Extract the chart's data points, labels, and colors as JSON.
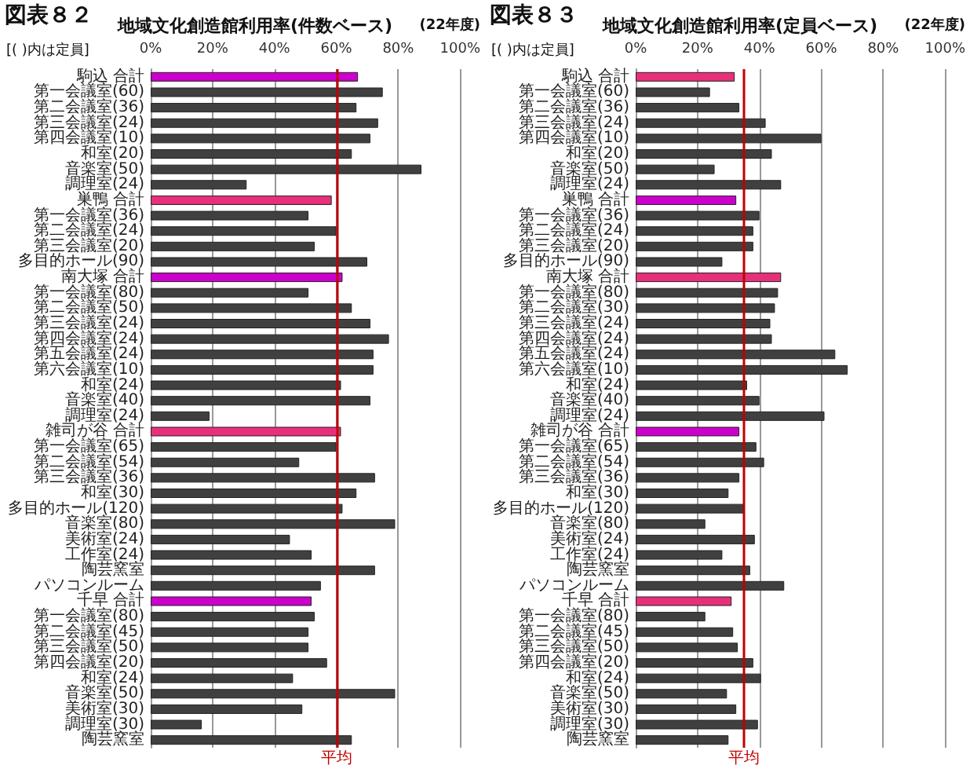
{
  "chart_data": [
    {
      "type": "bar",
      "orientation": "horizontal",
      "title": "地域文化創造館利用率(件数ベース)",
      "annotations": [
        "図表８２",
        "(22年度)",
        "[( )内は定員]"
      ],
      "categories": [
        "駒込 合計",
        "第一会議室(60)",
        "第二会議室(36)",
        "第三会議室(24)",
        "第四会議室(10)",
        "和室(20)",
        "音楽室(50)",
        "調理室(24)",
        "巣鴨 合計",
        "第一会議室(36)",
        "第二会議室(24)",
        "第三会議室(20)",
        "多目的ホール(90)",
        "南大塚 合計",
        "第一会議室(80)",
        "第二会議室(50)",
        "第三会議室(24)",
        "第四会議室(24)",
        "第五会議室(24)",
        "第六会議室(10)",
        "和室(24)",
        "音楽室(40)",
        "調理室(24)",
        "雑司が谷 合計",
        "第一会議室(65)",
        "第二会議室(54)",
        "第三会議室(36)",
        "和室(30)",
        "多目的ホール(120)",
        "音楽室(80)",
        "美術室(24)",
        "工作室(24)",
        "陶芸窯室",
        "パソコンルーム",
        "千早 合計",
        "第一会議室(80)",
        "第二会議室(45)",
        "第三会議室(50)",
        "第四会議室(20)",
        "和室(24)",
        "音楽室(50)",
        "美術室(30)",
        "調理室(30)",
        "陶芸窯室"
      ],
      "values": [
        67,
        75,
        66.5,
        73.5,
        71,
        65,
        87.5,
        31,
        58.5,
        51,
        60,
        53,
        70,
        62,
        51,
        65,
        71,
        77,
        72,
        72,
        61.5,
        71,
        19,
        61.5,
        60,
        48,
        72.5,
        66.5,
        62,
        79,
        45,
        52,
        72.5,
        55,
        52,
        53,
        51,
        51,
        57,
        46,
        79,
        49,
        16.5,
        65
      ],
      "colors": [
        "#cc00cc",
        "#404040",
        "#404040",
        "#404040",
        "#404040",
        "#404040",
        "#404040",
        "#404040",
        "#e8307a",
        "#404040",
        "#404040",
        "#404040",
        "#404040",
        "#cc00cc",
        "#404040",
        "#404040",
        "#404040",
        "#404040",
        "#404040",
        "#404040",
        "#404040",
        "#404040",
        "#404040",
        "#e8307a",
        "#404040",
        "#404040",
        "#404040",
        "#404040",
        "#404040",
        "#404040",
        "#404040",
        "#404040",
        "#404040",
        "#404040",
        "#cc00cc",
        "#404040",
        "#404040",
        "#404040",
        "#404040",
        "#404040",
        "#404040",
        "#404040",
        "#404040",
        "#404040"
      ],
      "xlim": [
        0,
        100
      ],
      "xticks": [
        {
          "value": 0,
          "label": "0%"
        },
        {
          "value": 20,
          "label": "20%"
        },
        {
          "value": 40,
          "label": "40%"
        },
        {
          "value": 60,
          "label": "60%"
        },
        {
          "value": 80,
          "label": "80%"
        },
        {
          "value": 100,
          "label": "100%"
        }
      ],
      "grid": "x",
      "ref_lines": [
        {
          "axis": "x",
          "value": 60,
          "label": "平均",
          "color": "#c00000"
        }
      ]
    },
    {
      "type": "bar",
      "orientation": "horizontal",
      "title": "地域文化創造館利用率(定員ベース)",
      "annotations": [
        "図表８３",
        "(22年度)",
        "[( )内は定員]"
      ],
      "categories": [
        "駒込 合計",
        "第一会議室(60)",
        "第二会議室(36)",
        "第三会議室(24)",
        "第四会議室(10)",
        "和室(20)",
        "音楽室(50)",
        "調理室(24)",
        "巣鴨 合計",
        "第一会議室(36)",
        "第二会議室(24)",
        "第三会議室(20)",
        "多目的ホール(90)",
        "南大塚 合計",
        "第一会議室(80)",
        "第二会議室(30)",
        "第三会議室(24)",
        "第四会議室(24)",
        "第五会議室(24)",
        "第六会議室(10)",
        "和室(24)",
        "音楽室(40)",
        "調理室(24)",
        "雑司が谷 合計",
        "第一会議室(65)",
        "第二会議室(54)",
        "第三会議室(36)",
        "和室(30)",
        "多目的ホール(120)",
        "音楽室(80)",
        "美術室(24)",
        "工作室(24)",
        "陶芸窯室",
        "パソコンルーム",
        "千早 合計",
        "第一会議室(80)",
        "第二会議室(45)",
        "第三会議室(50)",
        "第四会議室(20)",
        "和室(24)",
        "音楽室(50)",
        "美術室(30)",
        "調理室(30)",
        "陶芸窯室"
      ],
      "values": [
        32,
        24,
        33.5,
        42,
        60,
        44,
        25.5,
        47,
        32.5,
        40,
        38,
        38,
        28,
        47,
        46,
        45,
        43.5,
        44,
        64.5,
        68.5,
        36,
        40,
        61,
        33.5,
        39,
        41.5,
        33.5,
        30,
        35,
        22.5,
        38.5,
        28,
        37,
        48,
        31,
        22.5,
        31.5,
        33,
        38,
        40.5,
        29.5,
        32.5,
        39.5,
        30
      ],
      "colors": [
        "#e8307a",
        "#404040",
        "#404040",
        "#404040",
        "#404040",
        "#404040",
        "#404040",
        "#404040",
        "#cc00cc",
        "#404040",
        "#404040",
        "#404040",
        "#404040",
        "#e8307a",
        "#404040",
        "#404040",
        "#404040",
        "#404040",
        "#404040",
        "#404040",
        "#404040",
        "#404040",
        "#404040",
        "#cc00cc",
        "#404040",
        "#404040",
        "#404040",
        "#404040",
        "#404040",
        "#404040",
        "#404040",
        "#404040",
        "#404040",
        "#404040",
        "#e8307a",
        "#404040",
        "#404040",
        "#404040",
        "#404040",
        "#404040",
        "#404040",
        "#404040",
        "#404040",
        "#404040"
      ],
      "xlim": [
        0,
        100
      ],
      "xticks": [
        {
          "value": 0,
          "label": "0%"
        },
        {
          "value": 20,
          "label": "20%"
        },
        {
          "value": 40,
          "label": "40%"
        },
        {
          "value": 60,
          "label": "60%"
        },
        {
          "value": 80,
          "label": "80%"
        },
        {
          "value": 100,
          "label": "100%"
        }
      ],
      "grid": "x",
      "ref_lines": [
        {
          "axis": "x",
          "value": 35,
          "label": "平均",
          "color": "#c00000"
        }
      ]
    }
  ]
}
